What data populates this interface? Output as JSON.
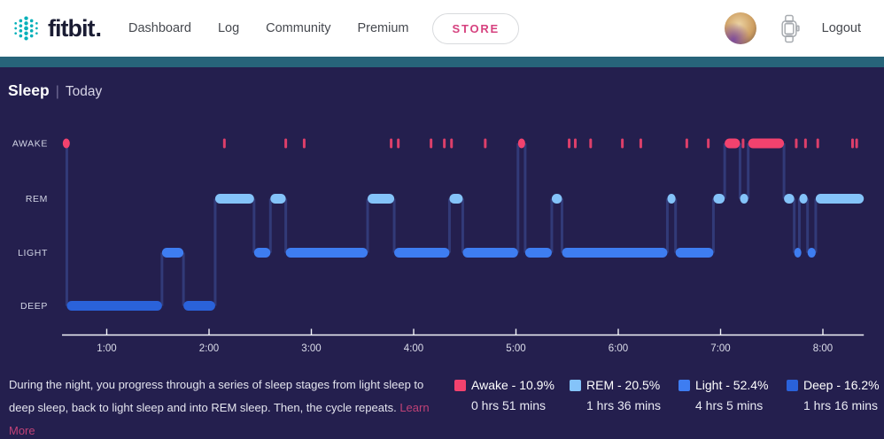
{
  "nav": {
    "brand": "fitbit",
    "brand_dot": ".",
    "items": [
      {
        "label": "Dashboard"
      },
      {
        "label": "Log"
      },
      {
        "label": "Community"
      },
      {
        "label": "Premium"
      }
    ],
    "store_label": "STORE",
    "logout_label": "Logout",
    "brand_color": "#00B0B9",
    "store_color": "#D6427F"
  },
  "header": {
    "title": "Sleep",
    "separator": "|",
    "subtitle": "Today"
  },
  "chart_data": {
    "type": "line",
    "subtype": "sleep-stage-hypnogram-step",
    "stages": [
      "AWAKE",
      "REM",
      "LIGHT",
      "DEEP"
    ],
    "x_ticks": [
      "1:00",
      "2:00",
      "3:00",
      "4:00",
      "5:00",
      "6:00",
      "7:00",
      "8:00"
    ],
    "x_axis_range_hours": [
      0.563,
      8.4
    ],
    "grid": false,
    "segments": [
      {
        "stage": "awake",
        "start": 0.57,
        "end": 0.61
      },
      {
        "stage": "deep",
        "start": 0.61,
        "end": 1.54
      },
      {
        "stage": "light",
        "start": 1.54,
        "end": 1.75
      },
      {
        "stage": "deep",
        "start": 1.75,
        "end": 2.06
      },
      {
        "stage": "rem",
        "start": 2.06,
        "end": 2.44
      },
      {
        "stage": "light",
        "start": 2.44,
        "end": 2.6
      },
      {
        "stage": "rem",
        "start": 2.6,
        "end": 2.75
      },
      {
        "stage": "light",
        "start": 2.75,
        "end": 3.55
      },
      {
        "stage": "rem",
        "start": 3.55,
        "end": 3.81
      },
      {
        "stage": "light",
        "start": 3.81,
        "end": 4.35
      },
      {
        "stage": "rem",
        "start": 4.35,
        "end": 4.48
      },
      {
        "stage": "light",
        "start": 4.48,
        "end": 5.02
      },
      {
        "stage": "awake",
        "start": 5.02,
        "end": 5.09
      },
      {
        "stage": "light",
        "start": 5.09,
        "end": 5.35
      },
      {
        "stage": "rem",
        "start": 5.35,
        "end": 5.45
      },
      {
        "stage": "light",
        "start": 5.45,
        "end": 6.48
      },
      {
        "stage": "rem",
        "start": 6.48,
        "end": 6.56
      },
      {
        "stage": "light",
        "start": 6.56,
        "end": 6.93
      },
      {
        "stage": "rem",
        "start": 6.93,
        "end": 7.04
      },
      {
        "stage": "awake",
        "start": 7.04,
        "end": 7.19
      },
      {
        "stage": "rem",
        "start": 7.19,
        "end": 7.27
      },
      {
        "stage": "awake",
        "start": 7.27,
        "end": 7.62
      },
      {
        "stage": "rem",
        "start": 7.62,
        "end": 7.72
      },
      {
        "stage": "light",
        "start": 7.72,
        "end": 7.77
      },
      {
        "stage": "rem",
        "start": 7.77,
        "end": 7.85
      },
      {
        "stage": "light",
        "start": 7.85,
        "end": 7.93
      },
      {
        "stage": "rem",
        "start": 7.93,
        "end": 8.4
      }
    ],
    "awake_marks_hours": [
      2.15,
      2.75,
      2.93,
      3.78,
      3.85,
      4.17,
      4.3,
      4.37,
      4.7,
      5.52,
      5.58,
      5.73,
      6.04,
      6.22,
      6.67,
      6.88,
      7.22,
      7.74,
      7.83,
      7.95,
      8.29,
      8.33
    ],
    "colors": {
      "awake": "#F2426E",
      "rem": "#84C3F9",
      "light": "#3E7DF1",
      "deep": "#2A62DA",
      "connector": "#323A78",
      "axis": "#F2F3F8",
      "tick_label": "#DCDEEA",
      "stage_label": "#D2D5E5"
    }
  },
  "footer": {
    "description": "During the night, you progress through a series of sleep stages from light sleep to deep sleep, back to light sleep and into REM sleep. Then, the cycle repeats.",
    "learn_more": "Learn More"
  },
  "legend": [
    {
      "label": "Awake - 10.9%",
      "duration": "0 hrs 51 mins",
      "color": "#F2426E"
    },
    {
      "label": "REM - 20.5%",
      "duration": "1 hrs 36 mins",
      "color": "#84C3F9"
    },
    {
      "label": "Light - 52.4%",
      "duration": "4 hrs 5 mins",
      "color": "#3E7DF1"
    },
    {
      "label": "Deep - 16.2%",
      "duration": "1 hrs 16 mins",
      "color": "#2A62DA"
    }
  ]
}
